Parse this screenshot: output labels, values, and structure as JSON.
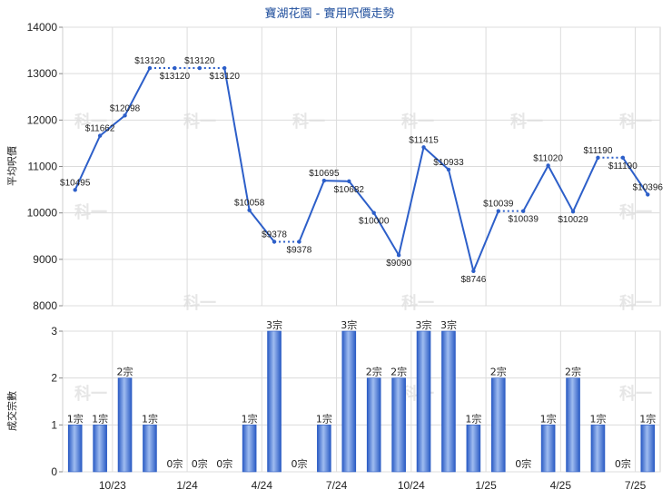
{
  "chart_data": [
    {
      "type": "line",
      "title": "寶湖花園 - 實用呎價走勢",
      "ylabel": "平均呎價",
      "ylim": [
        8000,
        14000
      ],
      "yticks": [
        8000,
        9000,
        10000,
        11000,
        12000,
        13000,
        14000
      ],
      "xticks": [
        "10/23",
        "1/24",
        "4/24",
        "7/24",
        "10/24",
        "1/25",
        "4/25",
        "7/25"
      ],
      "grid": true,
      "color": "#2d5fc9",
      "values": [
        10495,
        11662,
        12098,
        13120,
        13120,
        13120,
        13120,
        10058,
        9378,
        9378,
        10695,
        10682,
        10000,
        9090,
        11415,
        10933,
        8746,
        10039,
        10039,
        11020,
        10029,
        11190,
        11190,
        10396
      ],
      "labels": [
        "$10495",
        "$11662",
        "$12098",
        "$13120",
        "$13120",
        "$13120",
        "$13120",
        "$10058",
        "$9378",
        "$9378",
        "$10695",
        "$10682",
        "$10000",
        "$9090",
        "$11415",
        "$10933",
        "$8746",
        "$10039",
        "$10039",
        "$11020",
        "$10029",
        "$11190",
        "$11190",
        "$10396"
      ]
    },
    {
      "type": "bar",
      "ylabel": "成交宗數",
      "ylim": [
        0,
        3
      ],
      "yticks": [
        0,
        1,
        2,
        3
      ],
      "xticks": [
        "10/23",
        "1/24",
        "4/24",
        "7/24",
        "10/24",
        "1/25",
        "4/25",
        "7/25"
      ],
      "grid": true,
      "color": "#3a6fd0",
      "values": [
        1,
        1,
        2,
        1,
        0,
        0,
        0,
        1,
        3,
        0,
        1,
        3,
        2,
        2,
        3,
        3,
        1,
        2,
        0,
        1,
        2,
        1,
        0,
        1
      ],
      "labels": [
        "1宗",
        "1宗",
        "2宗",
        "1宗",
        "0宗",
        "0宗",
        "0宗",
        "1宗",
        "3宗",
        "0宗",
        "1宗",
        "3宗",
        "2宗",
        "2宗",
        "3宗",
        "3宗",
        "1宗",
        "2宗",
        "0宗",
        "1宗",
        "2宗",
        "1宗",
        "0宗",
        "1宗"
      ]
    }
  ],
  "watermark": "科一"
}
